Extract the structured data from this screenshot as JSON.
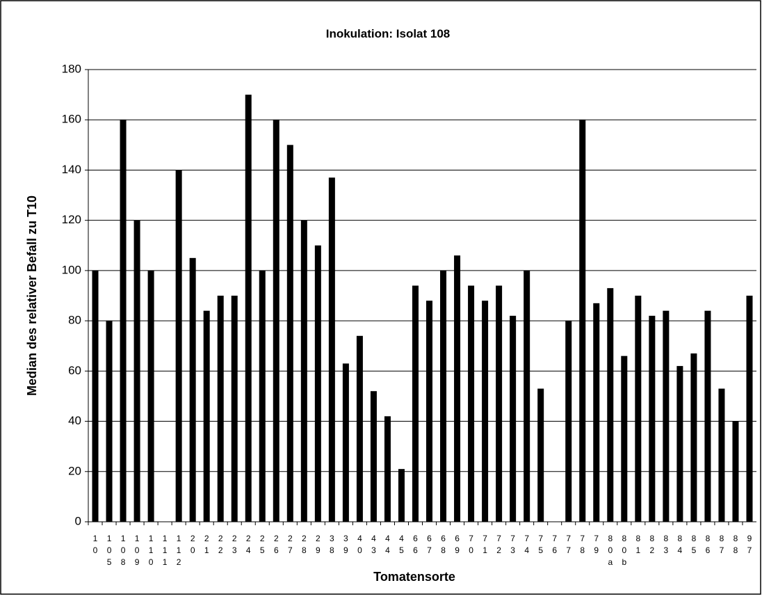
{
  "chart_data": {
    "type": "bar",
    "title": "Inokulation: Isolat 108",
    "x_label": "Tomatensorte",
    "y_label": "Median des relativer Befall zu T10",
    "categories": [
      "10",
      "105",
      "108",
      "109",
      "110",
      "111",
      "112",
      "20",
      "21",
      "22",
      "23",
      "24",
      "25",
      "26",
      "27",
      "28",
      "29",
      "38",
      "39",
      "40",
      "43",
      "44",
      "45",
      "66",
      "67",
      "68",
      "69",
      "70",
      "71",
      "72",
      "73",
      "74",
      "75",
      "76",
      "77",
      "78",
      "79",
      "80a",
      "80b",
      "81",
      "82",
      "83",
      "84",
      "85",
      "86",
      "87",
      "88",
      "97"
    ],
    "values": [
      100,
      80,
      160,
      120,
      100,
      null,
      140,
      105,
      84,
      90,
      90,
      170,
      100,
      160,
      150,
      120,
      110,
      137,
      63,
      74,
      52,
      42,
      21,
      94,
      88,
      100,
      106,
      94,
      88,
      94,
      82,
      100,
      53,
      null,
      80,
      160,
      87,
      93,
      66,
      90,
      82,
      84,
      62,
      67,
      84,
      53,
      40,
      90
    ],
    "color": "#000000",
    "ylim": [
      0,
      180
    ],
    "yticks": [
      0,
      20,
      40,
      60,
      80,
      100,
      120,
      140,
      160,
      180
    ],
    "grid": true
  }
}
